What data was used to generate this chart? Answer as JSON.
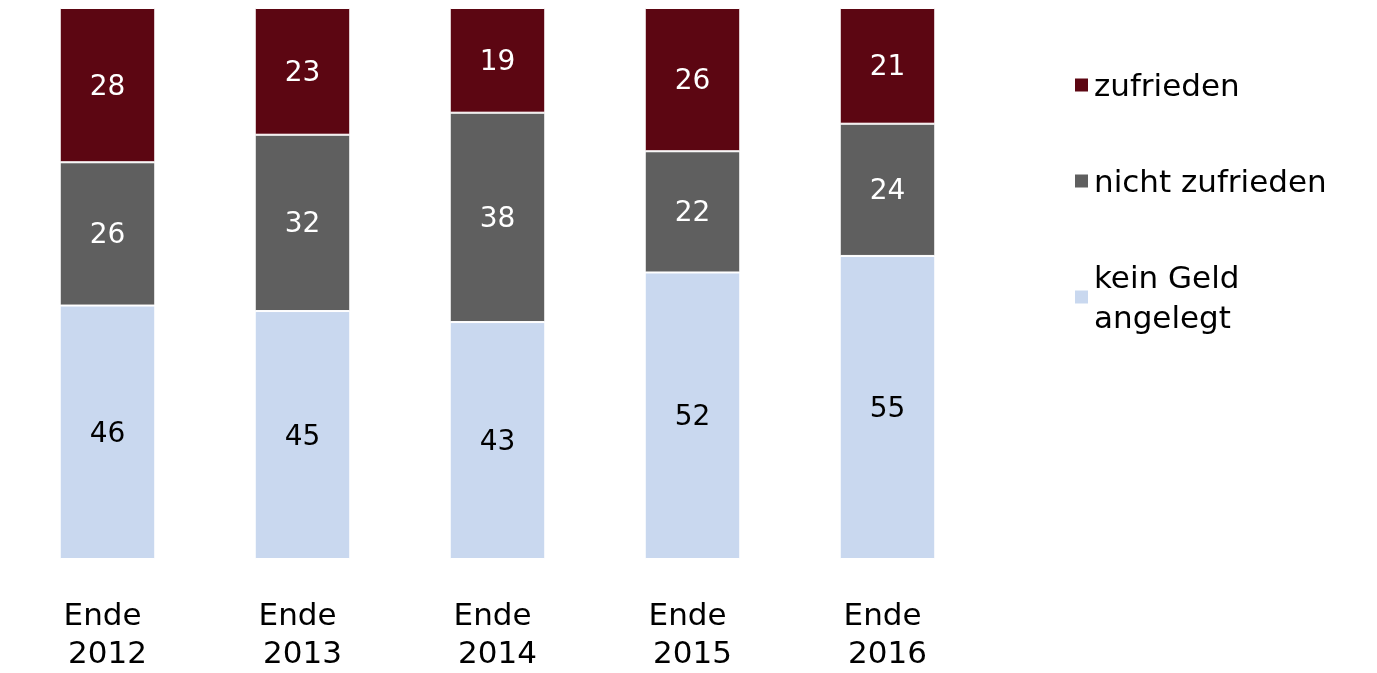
{
  "chart_data": {
    "type": "bar",
    "stacked": true,
    "data_labels": true,
    "legend": "right",
    "categories": [
      "Ende 2012",
      "Ende 2013",
      "Ende 2014",
      "Ende 2015",
      "Ende 2016"
    ],
    "series": [
      {
        "name": "kein Geld angelegt",
        "color": "#c9d8ef",
        "values": [
          46,
          45,
          43,
          52,
          55
        ]
      },
      {
        "name": "nicht zufrieden",
        "color": "#5f5f5f",
        "values": [
          26,
          32,
          38,
          22,
          24
        ]
      },
      {
        "name": "zufrieden",
        "color": "#5c0612",
        "values": [
          28,
          23,
          19,
          26,
          21
        ]
      }
    ]
  }
}
